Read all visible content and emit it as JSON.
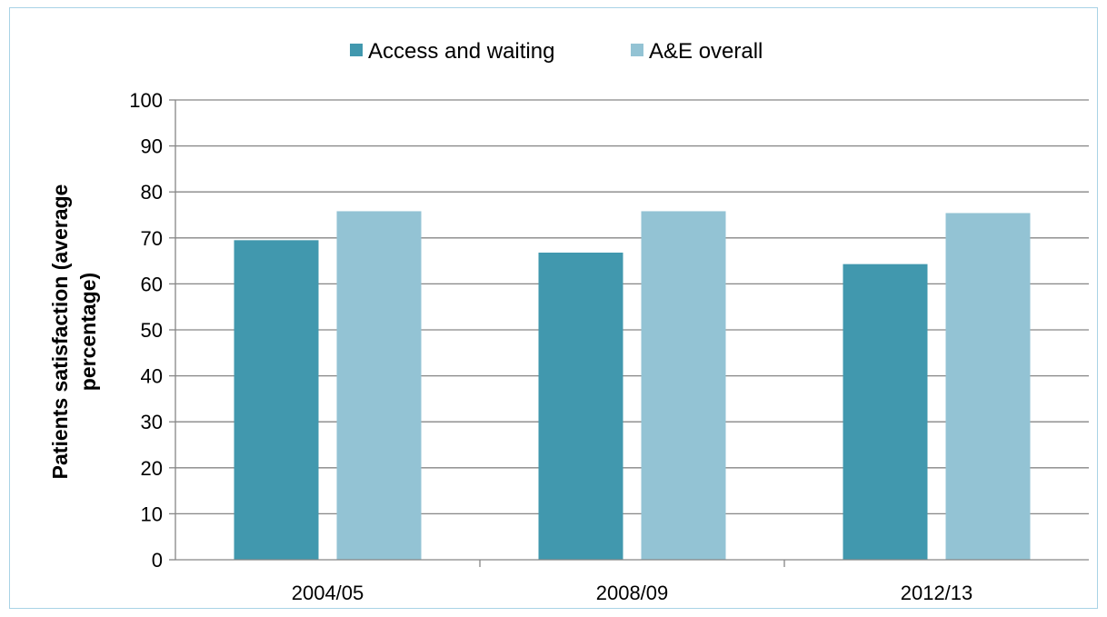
{
  "chart_data": {
    "type": "bar",
    "categories": [
      "2004/05",
      "2008/09",
      "2012/13"
    ],
    "series": [
      {
        "name": "Access and waiting",
        "values": [
          69.5,
          66.8,
          64.3
        ],
        "color": "#4198ae"
      },
      {
        "name": "A&E overall",
        "values": [
          75.8,
          75.8,
          75.4
        ],
        "color": "#93c3d4"
      }
    ],
    "title": "",
    "xlabel": "",
    "ylabel": "Patients satisfaction  (average percentage)",
    "ylabel_lines": [
      "Patients satisfaction  (average",
      "percentage)"
    ],
    "ylim": [
      0,
      100
    ],
    "yticks": [
      0,
      10,
      20,
      30,
      40,
      50,
      60,
      70,
      80,
      90,
      100
    ],
    "grid": true,
    "legend_position": "top-center"
  },
  "colors": {
    "gridline": "#868686",
    "axis": "#868686",
    "frame_border": "#a9d3e6"
  }
}
